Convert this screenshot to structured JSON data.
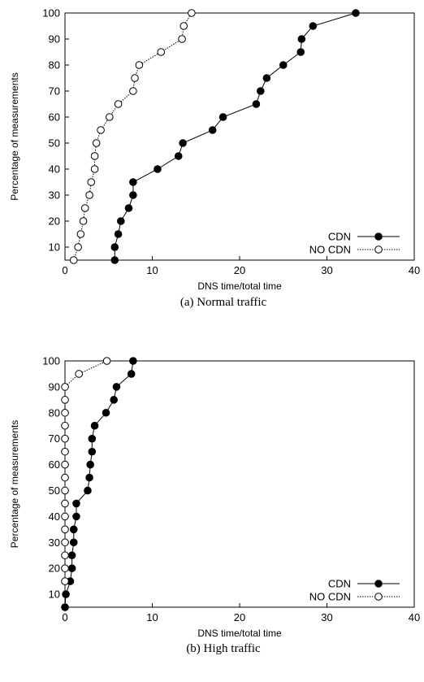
{
  "chart_data": [
    {
      "type": "line",
      "caption": "(a) Normal traffic",
      "xlabel": "DNS time/total time",
      "ylabel": "Percentage of measurements",
      "xlim": [
        0,
        40
      ],
      "ylim": [
        5,
        100
      ],
      "xticks": [
        0,
        10,
        20,
        30,
        40
      ],
      "yticks": [
        10,
        20,
        30,
        40,
        50,
        60,
        70,
        80,
        90,
        100
      ],
      "grid": false,
      "legend_position": "bottom-right",
      "series": [
        {
          "name": "CDN",
          "marker": "filled-circle",
          "line": "solid",
          "points": [
            [
              5.7,
              5
            ],
            [
              5.7,
              10
            ],
            [
              6.1,
              15
            ],
            [
              6.4,
              20
            ],
            [
              7.3,
              25
            ],
            [
              7.8,
              30
            ],
            [
              7.8,
              35
            ],
            [
              10.6,
              40
            ],
            [
              13.0,
              45
            ],
            [
              13.5,
              50
            ],
            [
              16.9,
              55
            ],
            [
              18.1,
              60
            ],
            [
              21.9,
              65
            ],
            [
              22.4,
              70
            ],
            [
              23.1,
              75
            ],
            [
              25.0,
              80
            ],
            [
              27.0,
              85
            ],
            [
              27.1,
              90
            ],
            [
              28.4,
              95
            ],
            [
              33.3,
              100
            ]
          ]
        },
        {
          "name": "NO CDN",
          "marker": "open-circle",
          "line": "dotted",
          "points": [
            [
              1.0,
              5
            ],
            [
              1.5,
              10
            ],
            [
              1.8,
              15
            ],
            [
              2.1,
              20
            ],
            [
              2.3,
              25
            ],
            [
              2.8,
              30
            ],
            [
              3.0,
              35
            ],
            [
              3.4,
              40
            ],
            [
              3.4,
              45
            ],
            [
              3.6,
              50
            ],
            [
              4.1,
              55
            ],
            [
              5.1,
              60
            ],
            [
              6.1,
              65
            ],
            [
              7.8,
              70
            ],
            [
              8.0,
              75
            ],
            [
              8.5,
              80
            ],
            [
              11.0,
              85
            ],
            [
              13.4,
              90
            ],
            [
              13.6,
              95
            ],
            [
              14.5,
              100
            ]
          ]
        }
      ]
    },
    {
      "type": "line",
      "caption": "(b) High traffic",
      "xlabel": "DNS time/total time",
      "ylabel": "Percentage of measurements",
      "xlim": [
        0,
        40
      ],
      "ylim": [
        5,
        100
      ],
      "xticks": [
        0,
        10,
        20,
        30,
        40
      ],
      "yticks": [
        10,
        20,
        30,
        40,
        50,
        60,
        70,
        80,
        90,
        100
      ],
      "grid": false,
      "legend_position": "bottom-right",
      "series": [
        {
          "name": "CDN",
          "marker": "filled-circle",
          "line": "solid",
          "points": [
            [
              0.0,
              5
            ],
            [
              0.1,
              10
            ],
            [
              0.6,
              15
            ],
            [
              0.8,
              20
            ],
            [
              0.8,
              25
            ],
            [
              1.0,
              30
            ],
            [
              1.0,
              35
            ],
            [
              1.3,
              40
            ],
            [
              1.3,
              45
            ],
            [
              2.6,
              50
            ],
            [
              2.8,
              55
            ],
            [
              2.9,
              60
            ],
            [
              3.1,
              65
            ],
            [
              3.1,
              70
            ],
            [
              3.4,
              75
            ],
            [
              4.7,
              80
            ],
            [
              5.6,
              85
            ],
            [
              5.9,
              90
            ],
            [
              7.6,
              95
            ],
            [
              7.8,
              100
            ]
          ]
        },
        {
          "name": "NO CDN",
          "marker": "open-circle",
          "line": "dotted",
          "points": [
            [
              0,
              15
            ],
            [
              0,
              20
            ],
            [
              0,
              25
            ],
            [
              0,
              30
            ],
            [
              0,
              35
            ],
            [
              0,
              40
            ],
            [
              0,
              45
            ],
            [
              0,
              50
            ],
            [
              0,
              55
            ],
            [
              0,
              60
            ],
            [
              0,
              65
            ],
            [
              0,
              70
            ],
            [
              0,
              75
            ],
            [
              0,
              80
            ],
            [
              0,
              85
            ],
            [
              0,
              90
            ],
            [
              1.6,
              95
            ],
            [
              4.8,
              100
            ]
          ]
        }
      ]
    }
  ]
}
